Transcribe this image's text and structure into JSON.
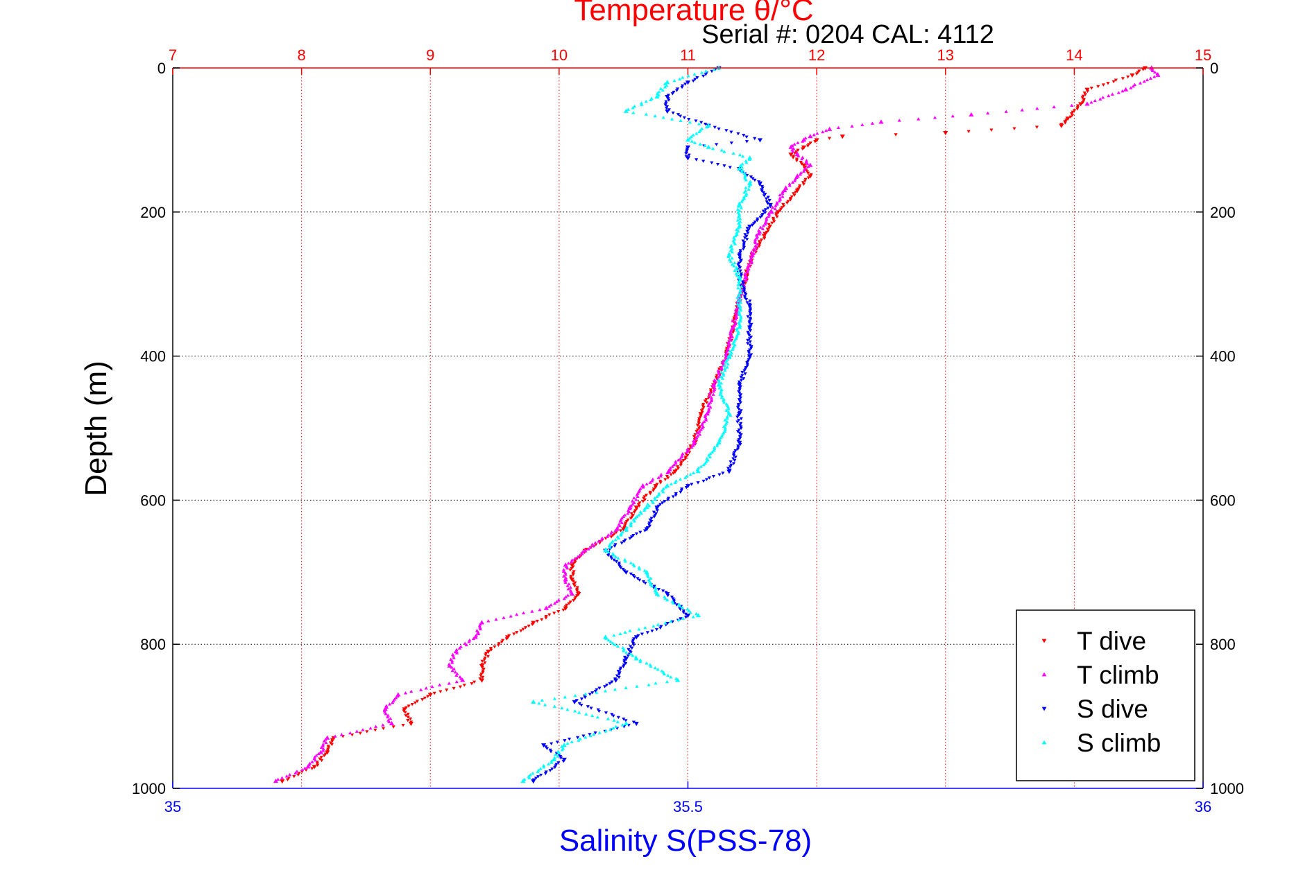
{
  "chart_data": {
    "type": "scatter",
    "title": "Temperature θ/°C",
    "subtitle": "Serial #: 0204  CAL: 4112",
    "ylabel": "Depth (m)",
    "xlabel_bottom": "Salinity S(PSS-78)",
    "xlabel_top": "Temperature θ/°C",
    "ylim": [
      0,
      1000
    ],
    "y_reversed": true,
    "y_ticks": [
      "0",
      "200",
      "400",
      "600",
      "800",
      "1000"
    ],
    "x_top_lim": [
      7,
      15
    ],
    "x_top_ticks": [
      "7",
      "8",
      "9",
      "10",
      "11",
      "12",
      "13",
      "14",
      "15"
    ],
    "x_bottom_lim": [
      35,
      36
    ],
    "x_bottom_ticks": [
      "35",
      "35.5",
      "36"
    ],
    "grid": true,
    "legend_position": "bottom-right",
    "colors": {
      "temperature_axis": "#ff0000",
      "salinity_axis": "#0000ff",
      "t_dive": "#ff0000",
      "t_climb": "#ff00ff",
      "s_dive": "#0000ff",
      "s_climb": "#00ffff"
    },
    "series": [
      {
        "name": "T dive",
        "axis": "temperature",
        "marker": "triangle-down",
        "depth": [
          0,
          10,
          30,
          50,
          70,
          80,
          90,
          95,
          100,
          110,
          120,
          135,
          150,
          170,
          200,
          230,
          260,
          290,
          320,
          360,
          400,
          440,
          480,
          520,
          560,
          580,
          610,
          640,
          670,
          690,
          710,
          730,
          750,
          770,
          790,
          810,
          830,
          850,
          870,
          890,
          910,
          930,
          950,
          970,
          990
        ],
        "values": [
          14.55,
          14.45,
          14.1,
          14.05,
          13.95,
          13.9,
          13.0,
          12.2,
          12.0,
          11.9,
          11.8,
          11.9,
          11.95,
          11.85,
          11.7,
          11.6,
          11.5,
          11.45,
          11.4,
          11.35,
          11.3,
          11.2,
          11.1,
          11.05,
          10.9,
          10.75,
          10.6,
          10.5,
          10.2,
          10.1,
          10.1,
          10.15,
          10.05,
          9.8,
          9.6,
          9.45,
          9.4,
          9.4,
          9.0,
          8.8,
          8.85,
          8.25,
          8.2,
          8.1,
          7.85
        ]
      },
      {
        "name": "T climb",
        "axis": "temperature",
        "marker": "triangle-up",
        "depth": [
          0,
          10,
          30,
          50,
          65,
          75,
          85,
          95,
          100,
          110,
          120,
          135,
          150,
          170,
          200,
          230,
          260,
          290,
          320,
          360,
          400,
          440,
          480,
          520,
          560,
          580,
          610,
          640,
          670,
          690,
          710,
          730,
          750,
          770,
          790,
          810,
          830,
          850,
          870,
          890,
          910,
          930,
          950,
          970,
          990
        ],
        "values": [
          14.6,
          14.65,
          14.4,
          14.1,
          13.2,
          12.5,
          12.1,
          11.95,
          11.9,
          11.8,
          11.85,
          11.95,
          11.85,
          11.75,
          11.65,
          11.55,
          11.5,
          11.45,
          11.4,
          11.35,
          11.3,
          11.2,
          11.15,
          11.05,
          10.85,
          10.65,
          10.55,
          10.45,
          10.2,
          10.05,
          10.05,
          10.1,
          9.9,
          9.4,
          9.35,
          9.2,
          9.15,
          9.25,
          8.75,
          8.65,
          8.7,
          8.2,
          8.15,
          8.05,
          7.8
        ]
      },
      {
        "name": "S dive",
        "axis": "salinity",
        "marker": "triangle-down",
        "depth": [
          0,
          20,
          40,
          60,
          80,
          100,
          110,
          125,
          140,
          160,
          190,
          220,
          260,
          290,
          330,
          360,
          400,
          440,
          480,
          520,
          560,
          580,
          610,
          640,
          670,
          700,
          730,
          760,
          790,
          820,
          850,
          880,
          910,
          940,
          960,
          990
        ],
        "values": [
          35.53,
          35.5,
          35.48,
          35.48,
          35.52,
          35.57,
          35.5,
          35.5,
          35.55,
          35.57,
          35.58,
          35.56,
          35.55,
          35.55,
          35.56,
          35.56,
          35.56,
          35.55,
          35.55,
          35.55,
          35.54,
          35.5,
          35.47,
          35.46,
          35.42,
          35.44,
          35.48,
          35.5,
          35.45,
          35.44,
          35.43,
          35.39,
          35.45,
          35.36,
          35.38,
          35.35
        ]
      },
      {
        "name": "S climb",
        "axis": "salinity",
        "marker": "triangle-up",
        "depth": [
          0,
          20,
          40,
          60,
          80,
          100,
          110,
          125,
          140,
          160,
          190,
          220,
          260,
          290,
          330,
          360,
          400,
          440,
          480,
          520,
          560,
          580,
          610,
          640,
          670,
          700,
          730,
          760,
          790,
          820,
          850,
          880,
          910,
          940,
          960,
          990
        ],
        "values": [
          35.53,
          35.48,
          35.47,
          35.44,
          35.52,
          35.5,
          35.52,
          35.56,
          35.55,
          35.56,
          35.55,
          35.55,
          35.54,
          35.55,
          35.55,
          35.55,
          35.54,
          35.53,
          35.54,
          35.53,
          35.51,
          35.48,
          35.46,
          35.44,
          35.42,
          35.46,
          35.47,
          35.51,
          35.42,
          35.45,
          35.49,
          35.35,
          35.44,
          35.38,
          35.37,
          35.34
        ]
      }
    ]
  }
}
